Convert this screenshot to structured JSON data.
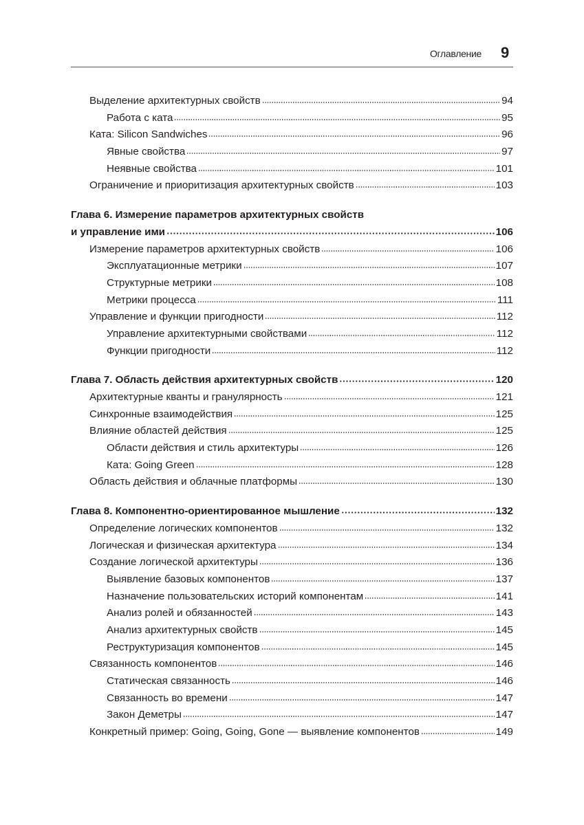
{
  "header": {
    "section": "Оглавление",
    "page_number": "9"
  },
  "entries": [
    {
      "level": 1,
      "title": "Выделение архитектурных свойств",
      "page": "94"
    },
    {
      "level": 2,
      "title": "Работа с ката",
      "page": "95"
    },
    {
      "level": 1,
      "title": "Ката: Silicon Sandwiches",
      "page": "96"
    },
    {
      "level": 2,
      "title": "Явные свойства",
      "page": "97"
    },
    {
      "level": 2,
      "title": "Неявные свойства",
      "page": "101"
    },
    {
      "level": 1,
      "title": "Ограничение и приоритизация архитектурных свойств",
      "page": "103"
    },
    {
      "level": 0,
      "title_line1": "Глава 6. Измерение параметров архитектурных свойств",
      "title": "и управление ими",
      "page": "106"
    },
    {
      "level": 1,
      "title": "Измерение параметров архитектурных свойств",
      "page": "106"
    },
    {
      "level": 2,
      "title": "Эксплуатационные метрики",
      "page": "107"
    },
    {
      "level": 2,
      "title": "Структурные метрики",
      "page": "108"
    },
    {
      "level": 2,
      "title": "Метрики процесса",
      "page": "111"
    },
    {
      "level": 1,
      "title": "Управление и функции пригодности",
      "page": "112"
    },
    {
      "level": 2,
      "title": "Управление архитектурными свойствами",
      "page": "112"
    },
    {
      "level": 2,
      "title": "Функции пригодности",
      "page": "112"
    },
    {
      "level": 0,
      "title": "Глава 7. Область действия архитектурных свойств",
      "page": "120"
    },
    {
      "level": 1,
      "title": "Архитектурные кванты и гранулярность",
      "page": "121"
    },
    {
      "level": 1,
      "title": "Синхронные взаимодействия",
      "page": "125"
    },
    {
      "level": 1,
      "title": "Влияние областей действия",
      "page": "125"
    },
    {
      "level": 2,
      "title": "Области действия и стиль архитектуры",
      "page": "126"
    },
    {
      "level": 2,
      "title": "Ката: Going Green",
      "page": "128"
    },
    {
      "level": 1,
      "title": "Область действия и облачные платформы",
      "page": "130"
    },
    {
      "level": 0,
      "title": "Глава 8. Компонентно-ориентированное мышление",
      "page": "132"
    },
    {
      "level": 1,
      "title": "Определение логических компонентов",
      "page": "132"
    },
    {
      "level": 1,
      "title": "Логическая и физическая архитектура",
      "page": "134"
    },
    {
      "level": 1,
      "title": "Создание логической архитектуры",
      "page": "136"
    },
    {
      "level": 2,
      "title": "Выявление базовых компонентов",
      "page": "137"
    },
    {
      "level": 2,
      "title": "Назначение пользовательских историй компонентам",
      "page": "141"
    },
    {
      "level": 2,
      "title": "Анализ ролей и обязанностей",
      "page": "143"
    },
    {
      "level": 2,
      "title": "Анализ архитектурных свойств",
      "page": "145"
    },
    {
      "level": 2,
      "title": "Реструктуризация компонентов",
      "page": "145"
    },
    {
      "level": 1,
      "title": "Связанность компонентов",
      "page": "146"
    },
    {
      "level": 2,
      "title": "Статическая связанность",
      "page": "146"
    },
    {
      "level": 2,
      "title": "Связанность во времени",
      "page": "147"
    },
    {
      "level": 2,
      "title": "Закон Деметры",
      "page": "147"
    },
    {
      "level": 1,
      "title": "Конкретный пример: Going, Going, Gone — выявление компонентов",
      "page": "149"
    }
  ]
}
